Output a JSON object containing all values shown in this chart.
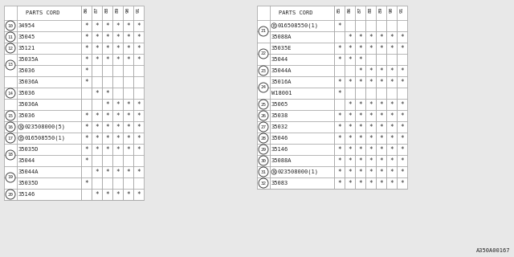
{
  "bg_color": "#e8e8e8",
  "table_bg": "#ffffff",
  "border_color": "#aaaaaa",
  "text_color": "#222222",
  "year_cols": [
    "86",
    "87",
    "88",
    "89",
    "90",
    "91"
  ],
  "left_table": {
    "title": "PARTS CORD",
    "rows": [
      {
        "num": "10",
        "part": "34954",
        "prefix": "",
        "stars": [
          1,
          1,
          1,
          1,
          1,
          1
        ]
      },
      {
        "num": "11",
        "part": "35045",
        "prefix": "",
        "stars": [
          1,
          1,
          1,
          1,
          1,
          1
        ]
      },
      {
        "num": "12",
        "part": "35121",
        "prefix": "",
        "stars": [
          1,
          1,
          1,
          1,
          1,
          1
        ]
      },
      {
        "num": "13",
        "part": "35035A",
        "prefix": "",
        "stars": [
          1,
          1,
          1,
          1,
          1,
          1
        ]
      },
      {
        "num": "",
        "part": "35036",
        "prefix": "",
        "stars": [
          1,
          0,
          0,
          0,
          0,
          0
        ]
      },
      {
        "num": "14",
        "part": "35036A",
        "prefix": "",
        "stars": [
          1,
          0,
          0,
          0,
          0,
          0
        ]
      },
      {
        "num": "",
        "part": "35036",
        "prefix": "",
        "stars": [
          0,
          1,
          1,
          0,
          0,
          0
        ]
      },
      {
        "num": "",
        "part": "35036A",
        "prefix": "",
        "stars": [
          0,
          0,
          1,
          1,
          1,
          1
        ]
      },
      {
        "num": "15",
        "part": "35036",
        "prefix": "",
        "stars": [
          1,
          1,
          1,
          1,
          1,
          1
        ]
      },
      {
        "num": "16",
        "part": "023508000(5)",
        "prefix": "N",
        "stars": [
          1,
          1,
          1,
          1,
          1,
          1
        ]
      },
      {
        "num": "17",
        "part": "016508550(1)",
        "prefix": "B",
        "stars": [
          1,
          1,
          1,
          1,
          1,
          1
        ]
      },
      {
        "num": "18",
        "part": "35035D",
        "prefix": "",
        "stars": [
          1,
          1,
          1,
          1,
          1,
          1
        ]
      },
      {
        "num": "",
        "part": "35044",
        "prefix": "",
        "stars": [
          1,
          0,
          0,
          0,
          0,
          0
        ]
      },
      {
        "num": "19",
        "part": "35044A",
        "prefix": "",
        "stars": [
          0,
          1,
          1,
          1,
          1,
          1
        ]
      },
      {
        "num": "",
        "part": "35035D",
        "prefix": "",
        "stars": [
          1,
          0,
          0,
          0,
          0,
          0
        ]
      },
      {
        "num": "20",
        "part": "35146",
        "prefix": "",
        "stars": [
          0,
          1,
          1,
          1,
          1,
          1
        ]
      }
    ]
  },
  "right_table": {
    "title": "PARTS CORD",
    "rows": [
      {
        "num": "21",
        "part": "016508550(1)",
        "prefix": "B",
        "stars": [
          1,
          0,
          0,
          0,
          0,
          0,
          0
        ]
      },
      {
        "num": "",
        "part": "35088A",
        "prefix": "",
        "stars": [
          0,
          1,
          1,
          1,
          1,
          1,
          1
        ]
      },
      {
        "num": "22",
        "part": "35035E",
        "prefix": "",
        "stars": [
          1,
          1,
          1,
          1,
          1,
          1,
          1
        ]
      },
      {
        "num": "",
        "part": "35044",
        "prefix": "",
        "stars": [
          1,
          1,
          1,
          0,
          0,
          0,
          0
        ]
      },
      {
        "num": "23",
        "part": "35044A",
        "prefix": "",
        "stars": [
          0,
          0,
          1,
          1,
          1,
          1,
          1
        ]
      },
      {
        "num": "24",
        "part": "35016A",
        "prefix": "",
        "stars": [
          1,
          1,
          1,
          1,
          1,
          1,
          1
        ]
      },
      {
        "num": "",
        "part": "W18001",
        "prefix": "",
        "stars": [
          1,
          0,
          0,
          0,
          0,
          0,
          0
        ]
      },
      {
        "num": "25",
        "part": "35065",
        "prefix": "",
        "stars": [
          0,
          1,
          1,
          1,
          1,
          1,
          1
        ]
      },
      {
        "num": "26",
        "part": "35038",
        "prefix": "",
        "stars": [
          1,
          1,
          1,
          1,
          1,
          1,
          1
        ]
      },
      {
        "num": "27",
        "part": "35032",
        "prefix": "",
        "stars": [
          1,
          1,
          1,
          1,
          1,
          1,
          1
        ]
      },
      {
        "num": "28",
        "part": "35046",
        "prefix": "",
        "stars": [
          1,
          1,
          1,
          1,
          1,
          1,
          1
        ]
      },
      {
        "num": "29",
        "part": "35146",
        "prefix": "",
        "stars": [
          1,
          1,
          1,
          1,
          1,
          1,
          1
        ]
      },
      {
        "num": "30",
        "part": "35088A",
        "prefix": "",
        "stars": [
          1,
          1,
          1,
          1,
          1,
          1,
          1
        ]
      },
      {
        "num": "31",
        "part": "023508000(1)",
        "prefix": "N",
        "stars": [
          1,
          1,
          1,
          1,
          1,
          1,
          1
        ]
      },
      {
        "num": "32",
        "part": "35083",
        "prefix": "",
        "stars": [
          1,
          1,
          1,
          1,
          1,
          1,
          1
        ]
      }
    ]
  },
  "right_year_cols": [
    "85",
    "86",
    "87",
    "88",
    "89",
    "90",
    "91"
  ],
  "footnote": "A350A00167"
}
